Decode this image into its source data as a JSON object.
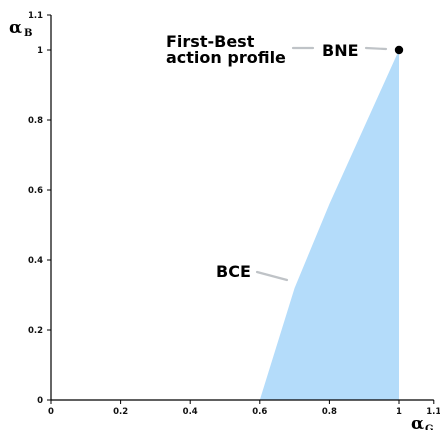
{
  "chart_data": {
    "type": "area",
    "xlim": [
      0,
      1.1
    ],
    "ylim": [
      0,
      1.1
    ],
    "xticks": [
      "0",
      "0.2",
      "0.4",
      "0.6",
      "0.8",
      "1",
      "1.1"
    ],
    "yticks": [
      "0",
      "0.2",
      "0.4",
      "0.6",
      "0.8",
      "1",
      "1.1"
    ],
    "xlabel": {
      "main": "α",
      "sub": "G"
    },
    "ylabel": {
      "main": "α",
      "sub": "B"
    },
    "grid": false,
    "region": {
      "name": "BCE",
      "color": "#b4dcfa",
      "boundary": [
        {
          "x": 0.6,
          "y": 0.0
        },
        {
          "x": 0.7,
          "y": 0.32
        },
        {
          "x": 0.8,
          "y": 0.56
        },
        {
          "x": 0.9,
          "y": 0.78
        },
        {
          "x": 1.0,
          "y": 1.0
        },
        {
          "x": 1.0,
          "y": 0.0
        }
      ]
    },
    "point": {
      "name": "BNE",
      "x": 1.0,
      "y": 1.0,
      "color": "#000000"
    },
    "annotations": [
      {
        "id": "first-best-1",
        "text": "First-Best"
      },
      {
        "id": "first-best-2",
        "text": "action profile"
      },
      {
        "id": "bne",
        "text": "BNE"
      },
      {
        "id": "bce",
        "text": "BCE"
      }
    ]
  }
}
